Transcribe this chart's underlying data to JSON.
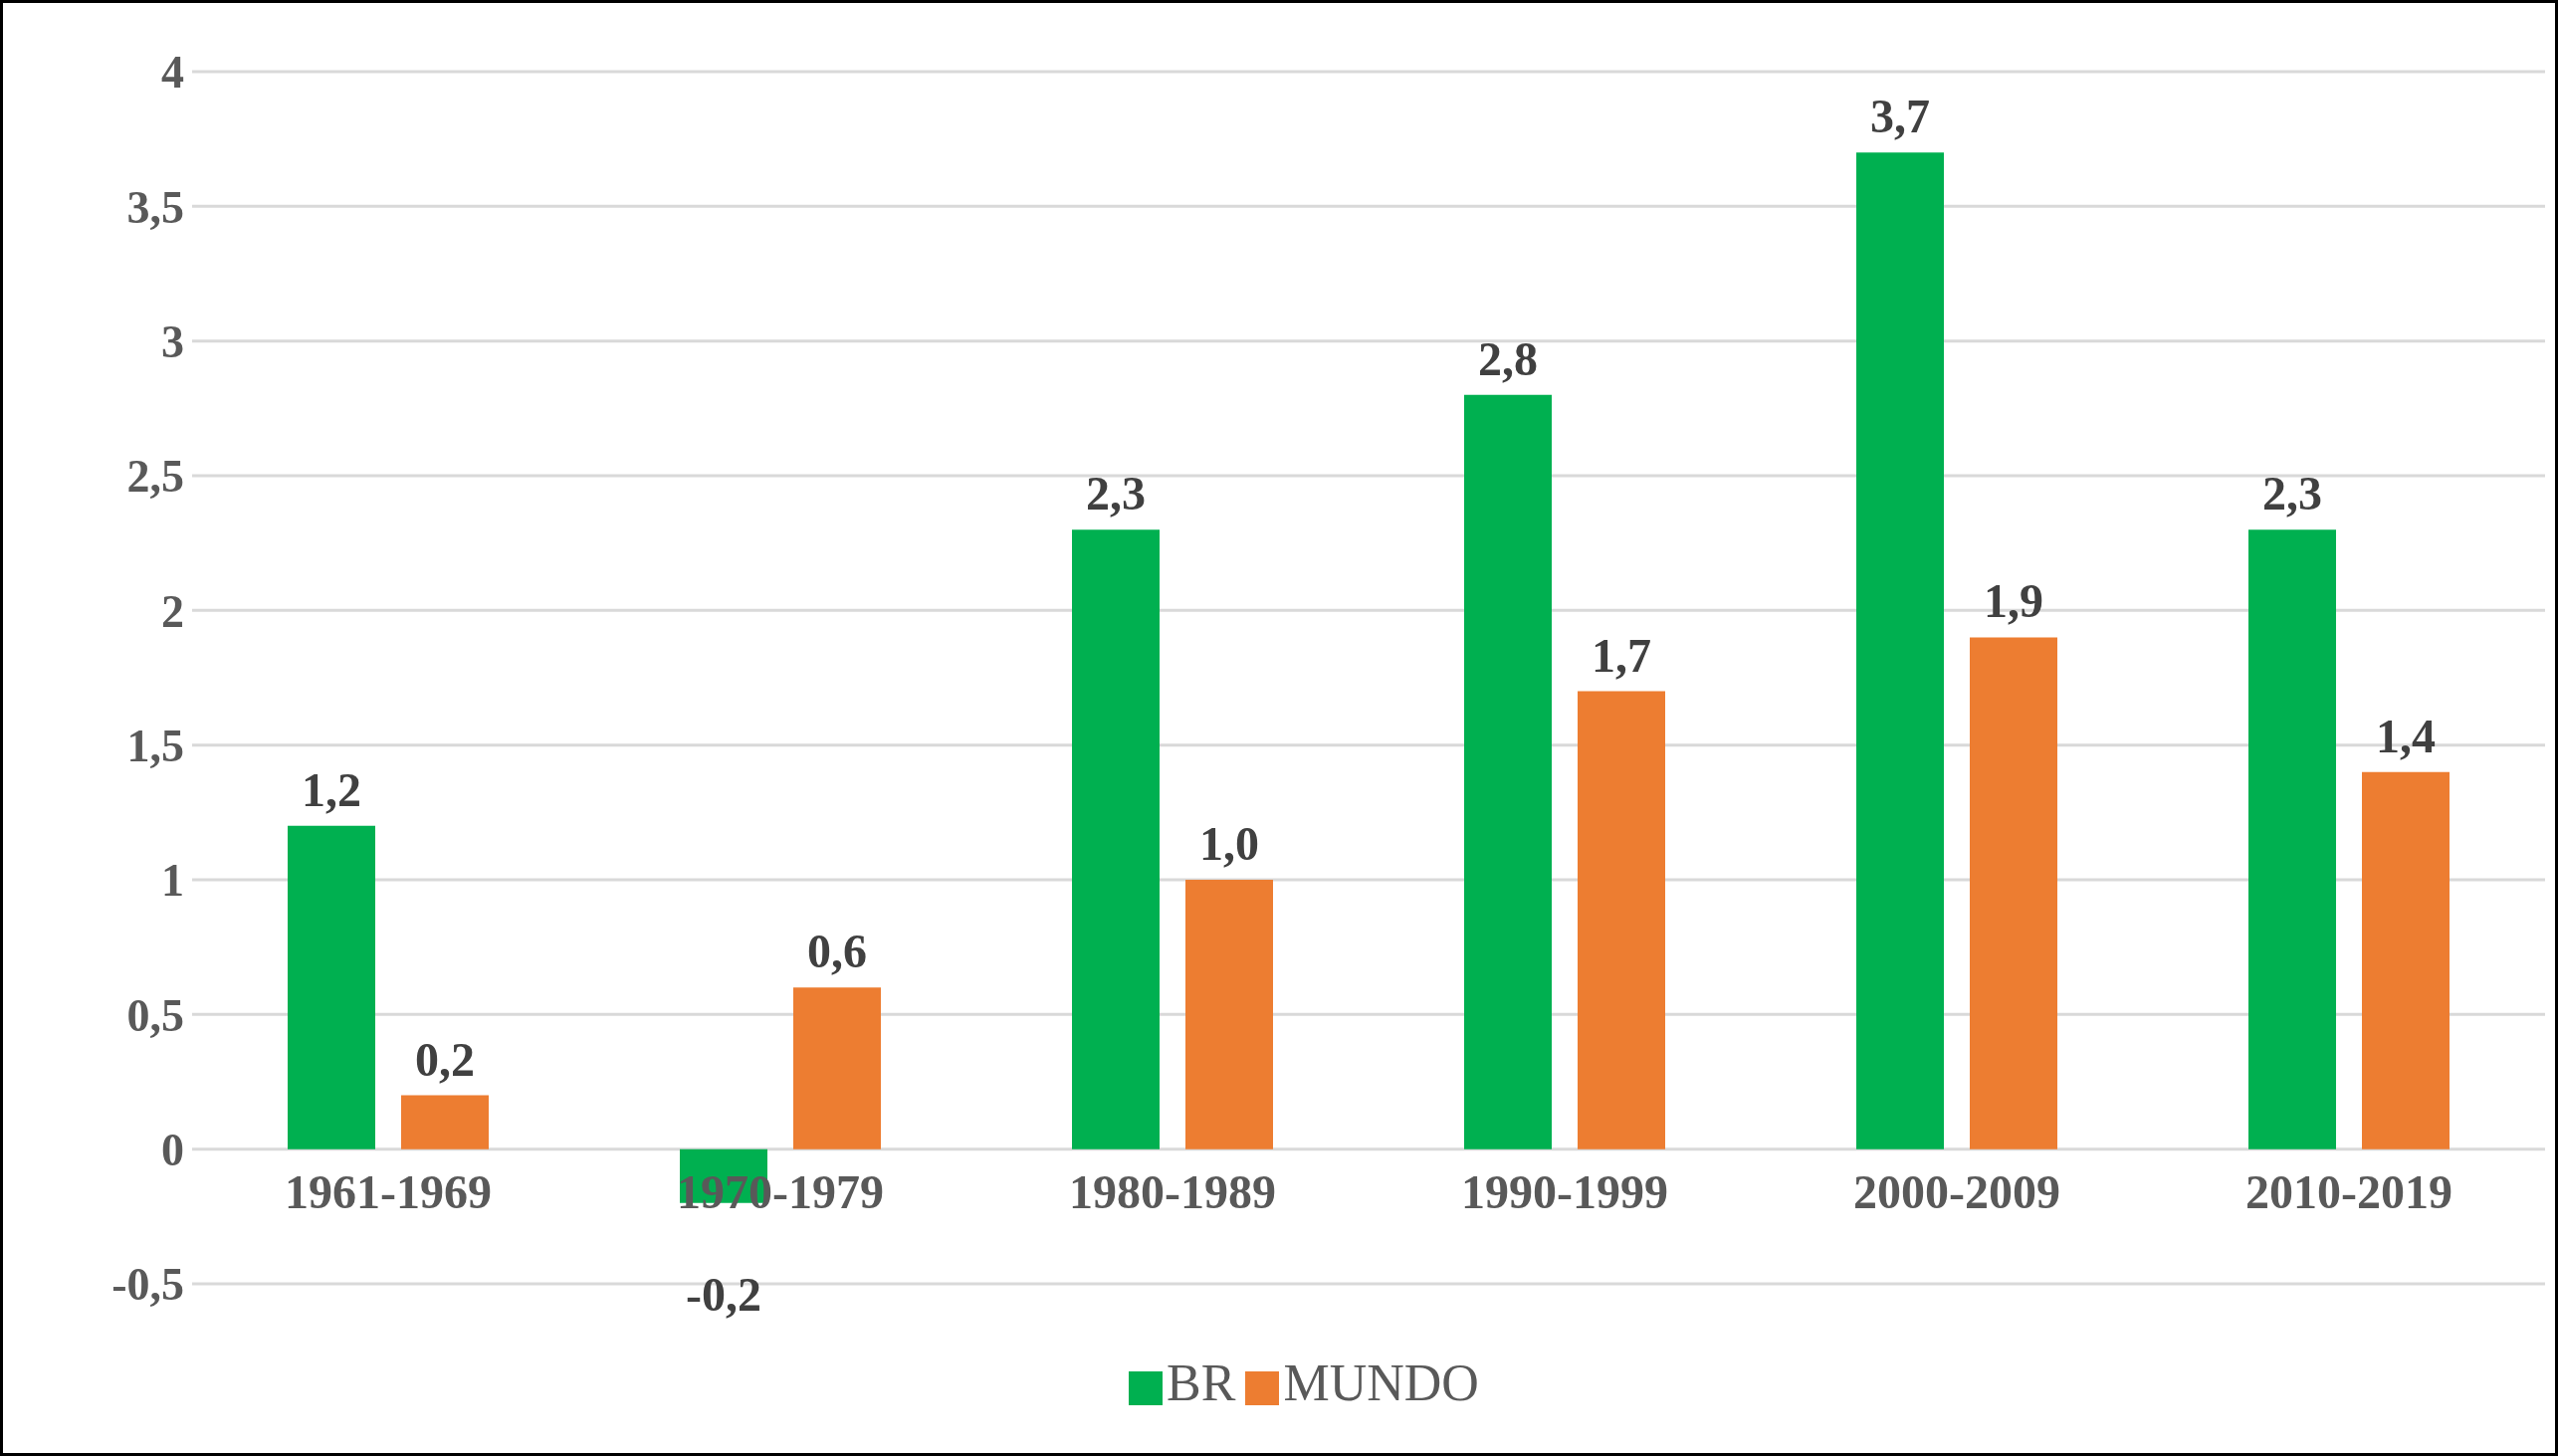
{
  "chart_data": {
    "type": "bar",
    "categories": [
      "1961-1969",
      "1970-1979",
      "1980-1989",
      "1990-1999",
      "2000-2009",
      "2010-2019"
    ],
    "series": [
      {
        "name": "BR",
        "color": "#00b050",
        "values": [
          1.2,
          -0.2,
          2.3,
          2.8,
          3.7,
          2.3
        ],
        "value_labels": [
          "1,2",
          "-0,2",
          "2,3",
          "2,8",
          "3,7",
          "2,3"
        ]
      },
      {
        "name": "MUNDO",
        "color": "#ed7d31",
        "values": [
          0.2,
          0.6,
          1.0,
          1.7,
          1.9,
          1.4
        ],
        "value_labels": [
          "0,2",
          "0,6",
          "1,0",
          "1,7",
          "1,9",
          "1,4"
        ]
      }
    ],
    "ylim": [
      -0.5,
      4
    ],
    "yticks": [
      {
        "value": -0.5,
        "label": "-0,5"
      },
      0,
      {
        "value": 0.5,
        "label": "0,5"
      },
      1,
      {
        "value": 1.5,
        "label": "1,5"
      },
      2,
      {
        "value": 2.5,
        "label": "2,5"
      },
      3,
      {
        "value": 3.5,
        "label": "3,5"
      },
      4
    ],
    "grid": "y",
    "legend": "bottom"
  }
}
